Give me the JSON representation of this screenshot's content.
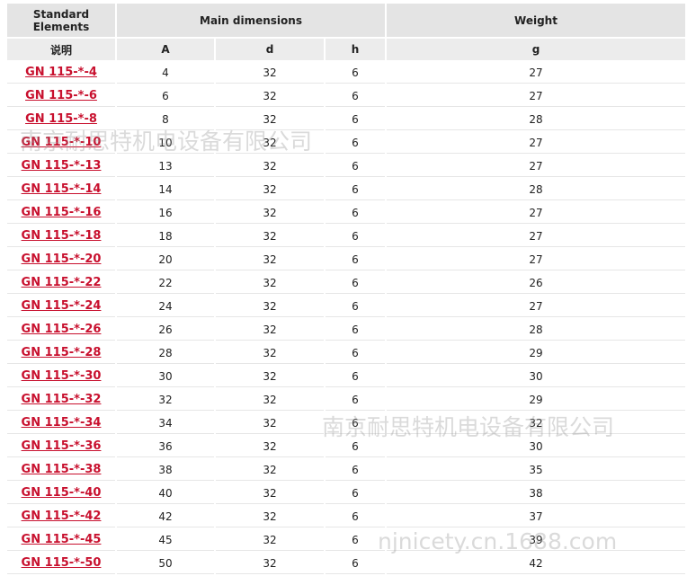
{
  "table": {
    "header": {
      "standard_elements": "Standard Elements",
      "main_dimensions": "Main dimensions",
      "weight": "Weight"
    },
    "subheader": [
      "说明",
      "A",
      "d",
      "h",
      "g"
    ],
    "rows": [
      [
        "GN 115-*-4",
        4,
        32,
        6,
        27
      ],
      [
        "GN 115-*-6",
        6,
        32,
        6,
        27
      ],
      [
        "GN 115-*-8",
        8,
        32,
        6,
        28
      ],
      [
        "GN 115-*-10",
        10,
        32,
        6,
        27
      ],
      [
        "GN 115-*-13",
        13,
        32,
        6,
        27
      ],
      [
        "GN 115-*-14",
        14,
        32,
        6,
        28
      ],
      [
        "GN 115-*-16",
        16,
        32,
        6,
        27
      ],
      [
        "GN 115-*-18",
        18,
        32,
        6,
        27
      ],
      [
        "GN 115-*-20",
        20,
        32,
        6,
        27
      ],
      [
        "GN 115-*-22",
        22,
        32,
        6,
        26
      ],
      [
        "GN 115-*-24",
        24,
        32,
        6,
        27
      ],
      [
        "GN 115-*-26",
        26,
        32,
        6,
        28
      ],
      [
        "GN 115-*-28",
        28,
        32,
        6,
        29
      ],
      [
        "GN 115-*-30",
        30,
        32,
        6,
        30
      ],
      [
        "GN 115-*-32",
        32,
        32,
        6,
        29
      ],
      [
        "GN 115-*-34",
        34,
        32,
        6,
        32
      ],
      [
        "GN 115-*-36",
        36,
        32,
        6,
        30
      ],
      [
        "GN 115-*-38",
        38,
        32,
        6,
        35
      ],
      [
        "GN 115-*-40",
        40,
        32,
        6,
        38
      ],
      [
        "GN 115-*-42",
        42,
        32,
        6,
        37
      ],
      [
        "GN 115-*-45",
        45,
        32,
        6,
        39
      ],
      [
        "GN 115-*-50",
        50,
        32,
        6,
        42
      ]
    ]
  },
  "watermarks": [
    "南京耐思特机电设备有限公司",
    "南京耐思特机电设备有限公司",
    "njnicety.cn.1688.com"
  ]
}
